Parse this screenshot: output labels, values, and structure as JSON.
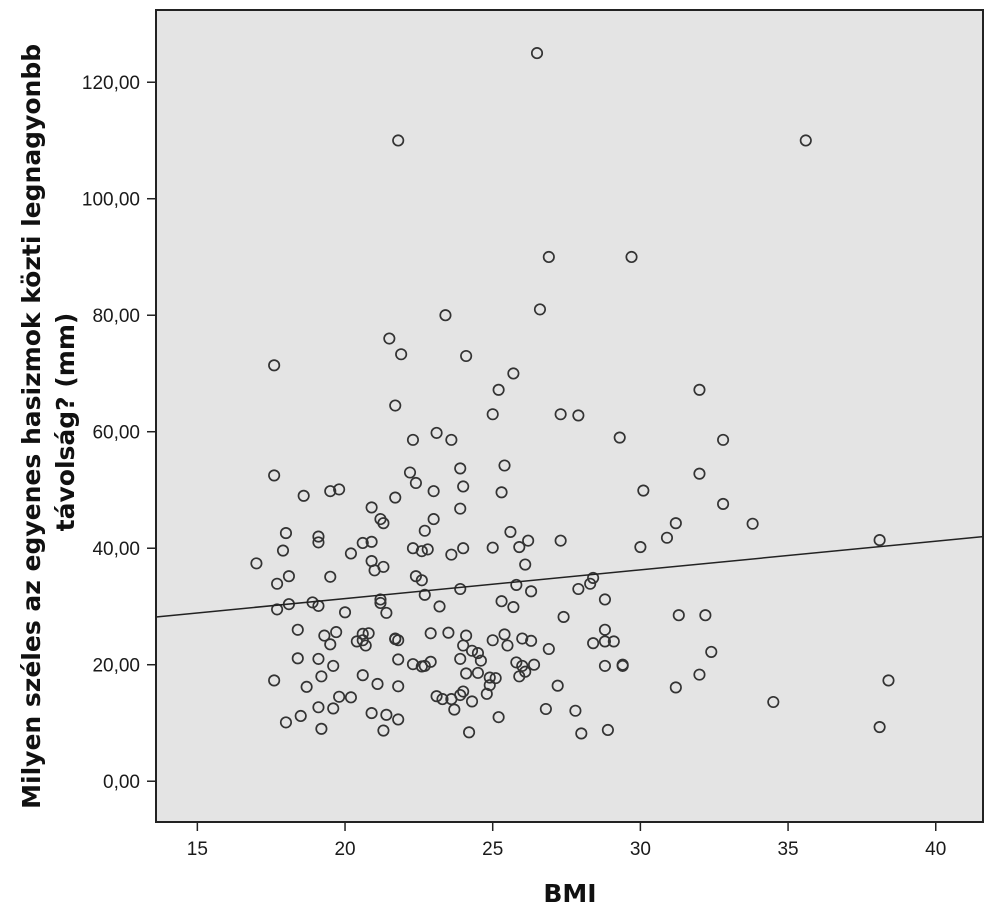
{
  "chart_data": {
    "type": "scatter",
    "xlabel": "BMI",
    "ylabel": "Milyen széles az egyenes hasizmok közti legnagyobb távolság? (mm)",
    "ylabel_lines": [
      "Milyen széles az egyenes hasizmok közti legnagyonbb",
      "távolság? (mm)"
    ],
    "xlim": [
      13.6,
      41.6
    ],
    "ylim": [
      -7,
      132.4
    ],
    "x_ticks": [
      15,
      20,
      25,
      30,
      35,
      40
    ],
    "x_tick_labels": [
      "15",
      "20",
      "25",
      "30",
      "35",
      "40"
    ],
    "y_ticks": [
      0,
      20,
      40,
      60,
      80,
      100,
      120
    ],
    "y_tick_labels": [
      "0,00",
      "20,00",
      "40,00",
      "60,00",
      "80,00",
      "100,00",
      "120,00"
    ],
    "grid": false,
    "colors": {
      "plot_background": "#e4e4e4",
      "marker": "#333333",
      "line": "#222222"
    },
    "fit_line": {
      "x": [
        13.6,
        41.6
      ],
      "y": [
        28.2,
        42.0
      ]
    },
    "points": [
      [
        26.5,
        125
      ],
      [
        21.8,
        110
      ],
      [
        35.6,
        110
      ],
      [
        26.9,
        90
      ],
      [
        29.7,
        90
      ],
      [
        23.4,
        80
      ],
      [
        26.6,
        81
      ],
      [
        21.5,
        76
      ],
      [
        17.6,
        71.4
      ],
      [
        21.9,
        73.3
      ],
      [
        24.1,
        73
      ],
      [
        25.7,
        70
      ],
      [
        25.2,
        67.2
      ],
      [
        32.0,
        67.2
      ],
      [
        21.7,
        64.5
      ],
      [
        25.0,
        63
      ],
      [
        27.3,
        63
      ],
      [
        27.9,
        62.8
      ],
      [
        23.1,
        59.8
      ],
      [
        29.3,
        59
      ],
      [
        22.3,
        58.6
      ],
      [
        23.6,
        58.6
      ],
      [
        32.8,
        58.6
      ],
      [
        17.6,
        52.5
      ],
      [
        22.2,
        53
      ],
      [
        23.9,
        53.7
      ],
      [
        25.4,
        54.2
      ],
      [
        32.0,
        52.8
      ],
      [
        22.4,
        51.2
      ],
      [
        24.0,
        50.6
      ],
      [
        19.8,
        50.1
      ],
      [
        19.5,
        49.8
      ],
      [
        18.6,
        49
      ],
      [
        21.7,
        48.7
      ],
      [
        23.0,
        49.8
      ],
      [
        25.3,
        49.6
      ],
      [
        30.1,
        49.9
      ],
      [
        32.8,
        47.6
      ],
      [
        20.9,
        47
      ],
      [
        23.9,
        46.8
      ],
      [
        21.2,
        45
      ],
      [
        21.3,
        44.3
      ],
      [
        23.0,
        45
      ],
      [
        31.2,
        44.3
      ],
      [
        33.8,
        44.2
      ],
      [
        22.7,
        43
      ],
      [
        18.0,
        42.6
      ],
      [
        19.1,
        42
      ],
      [
        19.1,
        41
      ],
      [
        20.6,
        40.9
      ],
      [
        20.9,
        41.1
      ],
      [
        25.6,
        42.8
      ],
      [
        26.2,
        41.3
      ],
      [
        27.3,
        41.3
      ],
      [
        30.9,
        41.8
      ],
      [
        38.1,
        41.4
      ],
      [
        17.9,
        39.6
      ],
      [
        20.2,
        39.1
      ],
      [
        22.3,
        40
      ],
      [
        22.6,
        39.5
      ],
      [
        22.8,
        39.8
      ],
      [
        23.6,
        38.9
      ],
      [
        24.0,
        40
      ],
      [
        25.0,
        40.1
      ],
      [
        25.9,
        40.2
      ],
      [
        30.0,
        40.2
      ],
      [
        17.0,
        37.4
      ],
      [
        20.9,
        37.8
      ],
      [
        21.0,
        36.2
      ],
      [
        21.3,
        36.8
      ],
      [
        26.1,
        37.2
      ],
      [
        17.7,
        33.9
      ],
      [
        18.1,
        35.2
      ],
      [
        19.5,
        35.1
      ],
      [
        22.4,
        35.2
      ],
      [
        22.6,
        34.5
      ],
      [
        25.8,
        33.7
      ],
      [
        27.9,
        33
      ],
      [
        28.3,
        33.9
      ],
      [
        28.4,
        34.9
      ],
      [
        17.7,
        29.5
      ],
      [
        18.1,
        30.4
      ],
      [
        18.9,
        30.7
      ],
      [
        19.1,
        30.1
      ],
      [
        20.0,
        29
      ],
      [
        21.2,
        31.2
      ],
      [
        21.2,
        30.6
      ],
      [
        21.4,
        28.9
      ],
      [
        22.7,
        32
      ],
      [
        23.9,
        33
      ],
      [
        25.3,
        30.9
      ],
      [
        25.7,
        29.9
      ],
      [
        26.3,
        32.6
      ],
      [
        27.4,
        28.2
      ],
      [
        28.8,
        31.2
      ],
      [
        31.3,
        28.5
      ],
      [
        32.2,
        28.5
      ],
      [
        18.4,
        26
      ],
      [
        19.3,
        25
      ],
      [
        19.7,
        25.6
      ],
      [
        20.6,
        25.3
      ],
      [
        20.8,
        25.4
      ],
      [
        21.7,
        24.4
      ],
      [
        21.7,
        24.5
      ],
      [
        22.9,
        25.4
      ],
      [
        23.2,
        30
      ],
      [
        23.5,
        25.5
      ],
      [
        24.1,
        25
      ],
      [
        25.0,
        24.2
      ],
      [
        25.4,
        25.2
      ],
      [
        26.0,
        24.5
      ],
      [
        26.3,
        24.1
      ],
      [
        28.8,
        26
      ],
      [
        19.5,
        23.5
      ],
      [
        20.4,
        24
      ],
      [
        20.6,
        24.2
      ],
      [
        20.7,
        23.3
      ],
      [
        21.8,
        24.2
      ],
      [
        22.7,
        19.8
      ],
      [
        22.9,
        20.5
      ],
      [
        24.0,
        23.3
      ],
      [
        24.3,
        22.4
      ],
      [
        24.5,
        22
      ],
      [
        25.5,
        23.3
      ],
      [
        26.9,
        22.7
      ],
      [
        28.4,
        23.7
      ],
      [
        28.8,
        24
      ],
      [
        29.1,
        24
      ],
      [
        32.4,
        22.2
      ],
      [
        18.4,
        21.1
      ],
      [
        19.1,
        21
      ],
      [
        19.6,
        19.8
      ],
      [
        21.8,
        20.9
      ],
      [
        22.3,
        20.1
      ],
      [
        22.6,
        19.7
      ],
      [
        23.9,
        21
      ],
      [
        24.6,
        20.7
      ],
      [
        25.8,
        20.4
      ],
      [
        26.0,
        19.8
      ],
      [
        26.4,
        20
      ],
      [
        28.8,
        19.8
      ],
      [
        29.4,
        20
      ],
      [
        29.4,
        19.8
      ],
      [
        19.2,
        18
      ],
      [
        20.6,
        18.2
      ],
      [
        24.1,
        18.5
      ],
      [
        24.5,
        18.6
      ],
      [
        24.9,
        17.8
      ],
      [
        25.1,
        17.7
      ],
      [
        25.9,
        18
      ],
      [
        26.1,
        18.8
      ],
      [
        32.0,
        18.3
      ],
      [
        17.6,
        17.3
      ],
      [
        18.7,
        16.2
      ],
      [
        21.1,
        16.7
      ],
      [
        21.8,
        16.3
      ],
      [
        24.0,
        15.4
      ],
      [
        24.9,
        16.5
      ],
      [
        27.2,
        16.4
      ],
      [
        31.2,
        16.1
      ],
      [
        38.4,
        17.3
      ],
      [
        19.8,
        14.5
      ],
      [
        20.2,
        14.4
      ],
      [
        23.1,
        14.6
      ],
      [
        23.3,
        14.1
      ],
      [
        23.6,
        14.1
      ],
      [
        23.9,
        14.8
      ],
      [
        24.3,
        13.7
      ],
      [
        24.8,
        15
      ],
      [
        34.5,
        13.6
      ],
      [
        19.1,
        12.7
      ],
      [
        19.6,
        12.5
      ],
      [
        20.9,
        11.7
      ],
      [
        21.4,
        11.4
      ],
      [
        23.7,
        12.3
      ],
      [
        25.2,
        11
      ],
      [
        26.8,
        12.4
      ],
      [
        27.8,
        12.1
      ],
      [
        18.0,
        10.1
      ],
      [
        18.5,
        11.2
      ],
      [
        19.2,
        9
      ],
      [
        21.3,
        8.7
      ],
      [
        21.8,
        10.6
      ],
      [
        24.2,
        8.4
      ],
      [
        28.0,
        8.2
      ],
      [
        28.9,
        8.8
      ],
      [
        38.1,
        9.3
      ]
    ]
  }
}
